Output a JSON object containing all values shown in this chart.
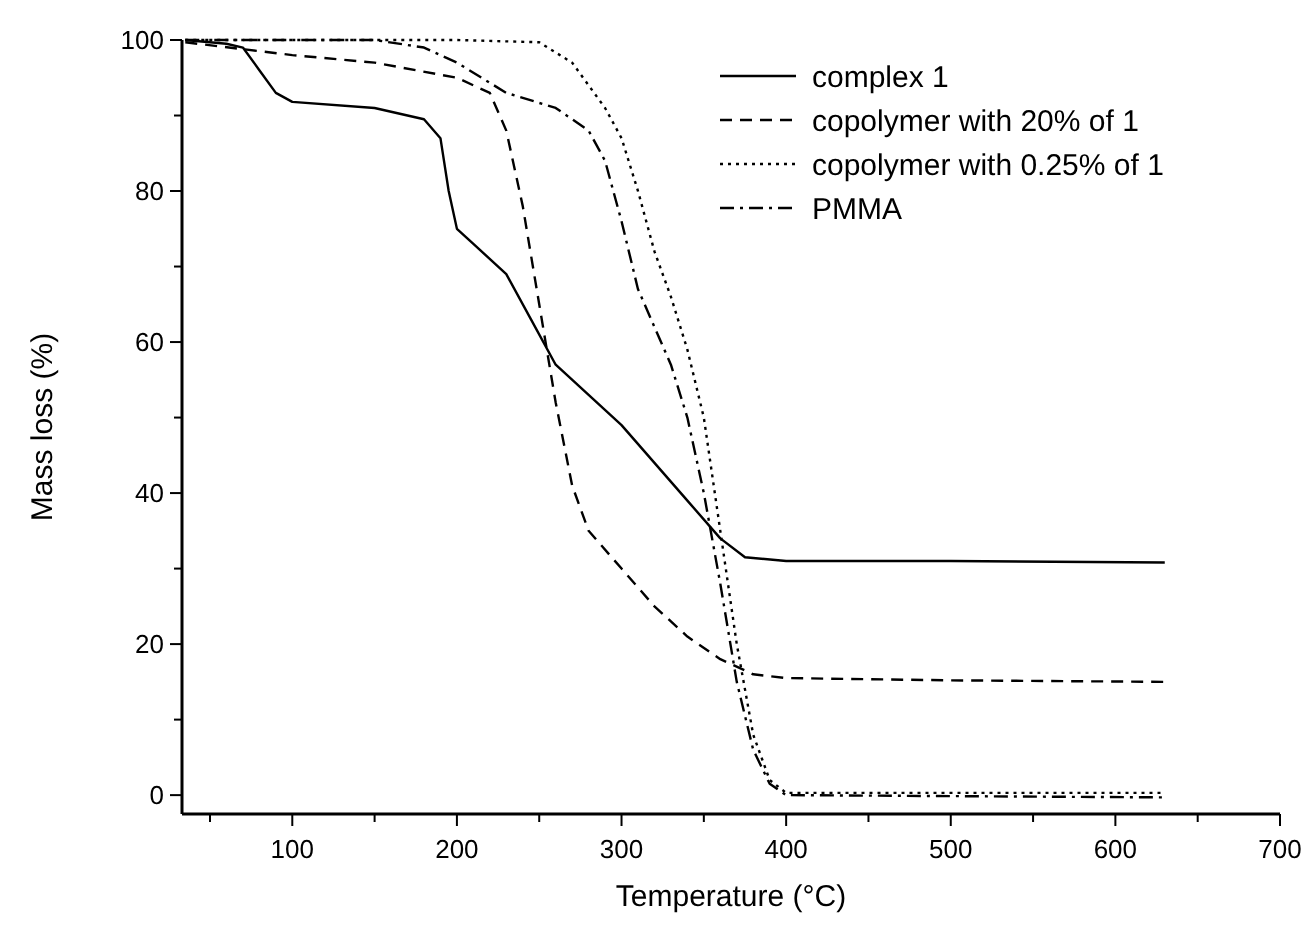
{
  "chart_data": {
    "type": "line",
    "xlabel": "Temperature (°C)",
    "ylabel": "Mass loss (%)",
    "xlim": [
      33,
      700
    ],
    "ylim": [
      -2.5,
      100
    ],
    "xticks": [
      {
        "value": 50,
        "label": null
      },
      100,
      {
        "value": 150,
        "label": null
      },
      200,
      {
        "value": 250,
        "label": null
      },
      300,
      {
        "value": 350,
        "label": null
      },
      400,
      {
        "value": 450,
        "label": null
      },
      500,
      {
        "value": 550,
        "label": null
      },
      600,
      {
        "value": 650,
        "label": null
      },
      700
    ],
    "yticks": [
      0,
      {
        "value": 10,
        "label": null
      },
      20,
      {
        "value": 30,
        "label": null
      },
      40,
      {
        "value": 50,
        "label": null
      },
      60,
      {
        "value": 70,
        "label": null
      },
      80,
      {
        "value": 90,
        "label": null
      },
      100
    ],
    "grid": false,
    "legend": "top right",
    "marker": "none",
    "series": [
      {
        "name": "complex 1",
        "color": "#000000",
        "line_style": "solid",
        "x": [
          35,
          60,
          70,
          80,
          90,
          100,
          150,
          180,
          190,
          195,
          200,
          210,
          230,
          245,
          260,
          280,
          300,
          320,
          340,
          360,
          375,
          400,
          500,
          630
        ],
        "values": [
          100,
          99.5,
          99,
          96,
          93,
          91.8,
          91,
          89.5,
          87,
          80,
          75,
          73,
          69,
          63,
          57,
          53,
          49,
          44,
          39,
          34,
          31.5,
          31,
          31,
          30.8
        ]
      },
      {
        "name": "copolymer with 20% of 1",
        "color": "#000000",
        "line_style": "dashed",
        "x": [
          35,
          100,
          150,
          200,
          220,
          230,
          240,
          250,
          260,
          270,
          280,
          300,
          320,
          340,
          360,
          380,
          400,
          500,
          630
        ],
        "values": [
          99.7,
          98,
          97,
          95,
          93,
          88,
          78,
          65,
          52,
          41,
          35,
          30,
          25,
          21,
          18,
          16,
          15.5,
          15.2,
          15
        ]
      },
      {
        "name": "copolymer with 0.25% of 1",
        "color": "#000000",
        "line_style": "dotted",
        "x": [
          35,
          200,
          250,
          270,
          290,
          300,
          310,
          320,
          330,
          340,
          350,
          360,
          370,
          380,
          390,
          400,
          630
        ],
        "values": [
          100,
          100,
          99.7,
          97,
          91,
          87,
          80,
          72,
          66,
          59,
          50,
          35,
          20,
          8,
          2,
          0.3,
          0.3
        ]
      },
      {
        "name": "PMMA",
        "color": "#000000",
        "line_style": "dashdot",
        "x": [
          35,
          150,
          180,
          200,
          230,
          260,
          280,
          290,
          300,
          310,
          320,
          330,
          340,
          350,
          360,
          370,
          380,
          390,
          400,
          630
        ],
        "values": [
          100,
          100,
          99,
          97,
          93,
          91,
          88,
          84,
          76,
          67,
          62,
          57,
          50,
          40,
          28,
          15,
          6,
          1.5,
          0,
          -0.3
        ]
      }
    ]
  }
}
